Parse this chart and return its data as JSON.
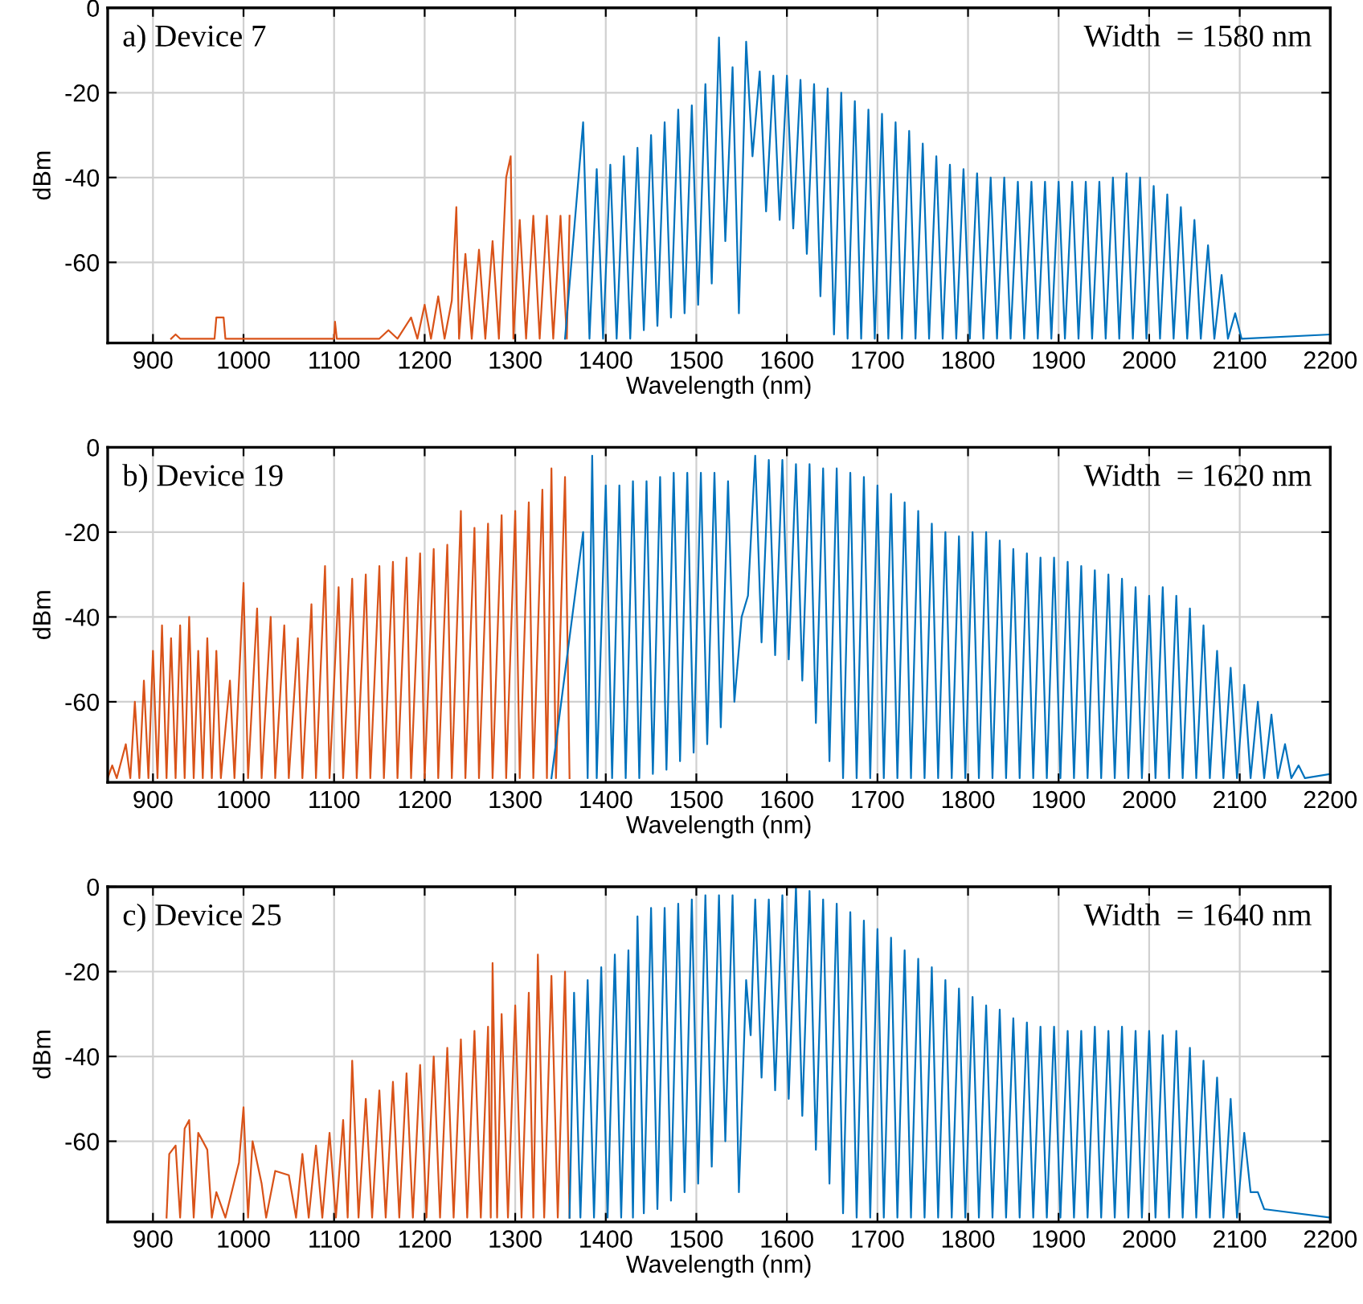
{
  "chart_data": [
    {
      "type": "line",
      "title": "a) Device 7",
      "xlabel": "Wavelength (nm)",
      "ylabel": "dBm",
      "annotations": [
        "Width  = 1580 nm"
      ],
      "xlim": [
        850,
        2200
      ],
      "xticks": [
        900,
        1000,
        1100,
        1200,
        1300,
        1400,
        1500,
        1600,
        1700,
        1800,
        1900,
        2000,
        2100,
        2200
      ],
      "ylim": [
        -79,
        0
      ],
      "yticks": [
        -60,
        -40,
        -20,
        0
      ],
      "grid": true,
      "legend": false,
      "series": [
        {
          "color": "#d95319",
          "x": [
            920,
            925,
            930,
            968,
            970,
            978,
            980,
            1100,
            1101,
            1103,
            1150,
            1160,
            1170,
            1185,
            1192,
            1200,
            1207,
            1215,
            1222,
            1230,
            1235,
            1238,
            1245,
            1252,
            1260,
            1267,
            1275,
            1282,
            1290,
            1295,
            1298,
            1305,
            1312,
            1320,
            1327,
            1335,
            1342,
            1350,
            1357,
            1360
          ],
          "values": [
            -78,
            -77,
            -78,
            -78,
            -73,
            -73,
            -78,
            -78,
            -74,
            -78,
            -78,
            -76,
            -78,
            -73,
            -78,
            -70,
            -78,
            -68,
            -78,
            -69,
            -47,
            -78,
            -58,
            -78,
            -57,
            -78,
            -55,
            -78,
            -40,
            -35,
            -78,
            -50,
            -78,
            -49,
            -78,
            -49,
            -78,
            -49,
            -78,
            -49
          ]
        },
        {
          "color": "#0072bd",
          "x": [
            1355,
            1375,
            1382,
            1390,
            1397,
            1405,
            1412,
            1420,
            1427,
            1435,
            1442,
            1450,
            1457,
            1465,
            1472,
            1480,
            1487,
            1495,
            1502,
            1510,
            1517,
            1525,
            1532,
            1540,
            1547,
            1555,
            1562,
            1570,
            1577,
            1585,
            1592,
            1600,
            1607,
            1615,
            1622,
            1630,
            1637,
            1645,
            1652,
            1660,
            1667,
            1675,
            1682,
            1690,
            1697,
            1705,
            1712,
            1720,
            1727,
            1735,
            1742,
            1750,
            1757,
            1765,
            1772,
            1780,
            1787,
            1795,
            1802,
            1810,
            1817,
            1825,
            1832,
            1840,
            1847,
            1855,
            1862,
            1870,
            1877,
            1885,
            1892,
            1900,
            1907,
            1915,
            1922,
            1930,
            1937,
            1945,
            1952,
            1960,
            1967,
            1975,
            1982,
            1990,
            1997,
            2005,
            2012,
            2020,
            2027,
            2035,
            2042,
            2050,
            2057,
            2065,
            2072,
            2080,
            2087,
            2095,
            2102,
            2200
          ],
          "values": [
            -78,
            -27,
            -78,
            -38,
            -78,
            -37,
            -78,
            -35,
            -78,
            -33,
            -76,
            -30,
            -75,
            -27,
            -73,
            -24,
            -72,
            -23,
            -70,
            -18,
            -65,
            -7,
            -55,
            -14,
            -72,
            -8,
            -35,
            -15,
            -48,
            -16,
            -50,
            -16,
            -52,
            -17,
            -58,
            -18,
            -68,
            -19,
            -77,
            -20,
            -78,
            -22,
            -78,
            -24,
            -78,
            -25,
            -78,
            -27,
            -78,
            -29,
            -78,
            -32,
            -78,
            -35,
            -78,
            -37,
            -78,
            -38,
            -78,
            -39,
            -78,
            -40,
            -78,
            -40,
            -78,
            -41,
            -78,
            -41,
            -78,
            -41,
            -78,
            -41,
            -78,
            -41,
            -78,
            -41,
            -78,
            -41,
            -78,
            -40,
            -78,
            -39,
            -78,
            -40,
            -78,
            -42,
            -78,
            -44,
            -78,
            -47,
            -78,
            -50,
            -78,
            -56,
            -78,
            -63,
            -78,
            -72,
            -78,
            -77
          ]
        }
      ]
    },
    {
      "type": "line",
      "title": "b) Device 19",
      "xlabel": "Wavelength (nm)",
      "ylabel": "dBm",
      "annotations": [
        "Width  = 1620 nm"
      ],
      "xlim": [
        850,
        2200
      ],
      "xticks": [
        900,
        1000,
        1100,
        1200,
        1300,
        1400,
        1500,
        1600,
        1700,
        1800,
        1900,
        2000,
        2100,
        2200
      ],
      "ylim": [
        -79,
        0
      ],
      "yticks": [
        -60,
        -40,
        -20,
        0
      ],
      "grid": true,
      "legend": false,
      "series": [
        {
          "color": "#d95319",
          "x": [
            850,
            855,
            860,
            870,
            875,
            880,
            885,
            890,
            895,
            900,
            905,
            910,
            915,
            920,
            925,
            930,
            935,
            940,
            945,
            950,
            955,
            960,
            965,
            970,
            975,
            985,
            990,
            1000,
            1005,
            1015,
            1020,
            1030,
            1035,
            1045,
            1050,
            1060,
            1065,
            1075,
            1080,
            1090,
            1095,
            1105,
            1110,
            1120,
            1125,
            1135,
            1140,
            1150,
            1155,
            1165,
            1170,
            1180,
            1185,
            1195,
            1200,
            1210,
            1215,
            1225,
            1230,
            1240,
            1245,
            1255,
            1260,
            1270,
            1275,
            1285,
            1290,
            1300,
            1305,
            1315,
            1320,
            1330,
            1335,
            1340,
            1345,
            1355,
            1360
          ],
          "values": [
            -78,
            -75,
            -78,
            -70,
            -78,
            -60,
            -78,
            -55,
            -78,
            -48,
            -78,
            -42,
            -78,
            -45,
            -78,
            -42,
            -78,
            -40,
            -78,
            -48,
            -78,
            -45,
            -78,
            -48,
            -78,
            -55,
            -78,
            -32,
            -78,
            -38,
            -78,
            -40,
            -78,
            -42,
            -78,
            -45,
            -78,
            -37,
            -78,
            -28,
            -78,
            -33,
            -78,
            -31,
            -78,
            -30,
            -78,
            -28,
            -78,
            -27,
            -78,
            -26,
            -78,
            -25,
            -78,
            -24,
            -78,
            -23,
            -78,
            -15,
            -78,
            -19,
            -78,
            -18,
            -78,
            -16,
            -78,
            -15,
            -78,
            -13,
            -78,
            -10,
            -78,
            -5,
            -78,
            -7,
            -78
          ]
        },
        {
          "color": "#0072bd",
          "x": [
            1340,
            1375,
            1380,
            1385,
            1390,
            1400,
            1407,
            1415,
            1422,
            1430,
            1437,
            1445,
            1452,
            1460,
            1467,
            1475,
            1482,
            1490,
            1497,
            1505,
            1512,
            1520,
            1527,
            1535,
            1542,
            1550,
            1557,
            1565,
            1572,
            1580,
            1587,
            1595,
            1602,
            1610,
            1617,
            1625,
            1632,
            1640,
            1647,
            1655,
            1662,
            1670,
            1677,
            1685,
            1692,
            1700,
            1707,
            1715,
            1722,
            1730,
            1737,
            1745,
            1752,
            1760,
            1767,
            1775,
            1782,
            1790,
            1797,
            1805,
            1812,
            1820,
            1827,
            1835,
            1842,
            1850,
            1857,
            1865,
            1872,
            1880,
            1887,
            1895,
            1902,
            1910,
            1917,
            1925,
            1932,
            1940,
            1947,
            1955,
            1962,
            1970,
            1977,
            1985,
            1992,
            2000,
            2007,
            2015,
            2022,
            2030,
            2037,
            2045,
            2052,
            2060,
            2067,
            2075,
            2082,
            2090,
            2097,
            2105,
            2112,
            2120,
            2127,
            2135,
            2142,
            2150,
            2157,
            2165,
            2172,
            2200
          ],
          "values": [
            -78,
            -20,
            -78,
            -2,
            -78,
            -9,
            -78,
            -9,
            -78,
            -8,
            -78,
            -8,
            -77,
            -7,
            -76,
            -6,
            -74,
            -6,
            -72,
            -6,
            -70,
            -6,
            -66,
            -8,
            -60,
            -40,
            -35,
            -2,
            -46,
            -3,
            -49,
            -3,
            -50,
            -4,
            -55,
            -4,
            -65,
            -5,
            -74,
            -5,
            -78,
            -6,
            -78,
            -7,
            -78,
            -9,
            -78,
            -11,
            -78,
            -13,
            -78,
            -15,
            -78,
            -18,
            -78,
            -20,
            -78,
            -21,
            -78,
            -20,
            -78,
            -20,
            -78,
            -22,
            -78,
            -24,
            -78,
            -25,
            -78,
            -26,
            -78,
            -26,
            -78,
            -27,
            -78,
            -28,
            -78,
            -29,
            -78,
            -30,
            -78,
            -31,
            -78,
            -33,
            -78,
            -35,
            -78,
            -33,
            -78,
            -35,
            -78,
            -38,
            -78,
            -42,
            -78,
            -48,
            -78,
            -52,
            -78,
            -56,
            -78,
            -60,
            -78,
            -63,
            -78,
            -70,
            -78,
            -75,
            -78,
            -77
          ]
        }
      ]
    },
    {
      "type": "line",
      "title": "c) Device 25",
      "xlabel": "Wavelength (nm)",
      "ylabel": "dBm",
      "annotations": [
        "Width  = 1640 nm"
      ],
      "xlim": [
        850,
        2200
      ],
      "xticks": [
        900,
        1000,
        1100,
        1200,
        1300,
        1400,
        1500,
        1600,
        1700,
        1800,
        1900,
        2000,
        2100,
        2200
      ],
      "ylim": [
        -79,
        0
      ],
      "yticks": [
        -60,
        -40,
        -20,
        0
      ],
      "grid": true,
      "legend": false,
      "series": [
        {
          "color": "#d95319",
          "x": [
            915,
            918,
            925,
            930,
            935,
            940,
            945,
            950,
            960,
            965,
            970,
            980,
            995,
            1000,
            1005,
            1010,
            1020,
            1025,
            1035,
            1050,
            1058,
            1065,
            1072,
            1080,
            1087,
            1095,
            1102,
            1110,
            1115,
            1120,
            1127,
            1135,
            1142,
            1150,
            1157,
            1165,
            1172,
            1180,
            1187,
            1195,
            1202,
            1210,
            1217,
            1225,
            1232,
            1240,
            1247,
            1255,
            1262,
            1270,
            1273,
            1275,
            1280,
            1285,
            1292,
            1300,
            1307,
            1315,
            1320,
            1325,
            1332,
            1340,
            1347,
            1355,
            1360
          ],
          "values": [
            -78,
            -63,
            -61,
            -78,
            -57,
            -55,
            -78,
            -58,
            -62,
            -78,
            -72,
            -78,
            -65,
            -52,
            -78,
            -60,
            -70,
            -78,
            -67,
            -68,
            -78,
            -63,
            -78,
            -61,
            -78,
            -58,
            -78,
            -55,
            -78,
            -41,
            -78,
            -50,
            -78,
            -48,
            -78,
            -46,
            -78,
            -44,
            -78,
            -42,
            -78,
            -40,
            -78,
            -38,
            -78,
            -36,
            -78,
            -34,
            -78,
            -33,
            -78,
            -18,
            -78,
            -30,
            -78,
            -28,
            -78,
            -25,
            -78,
            -16,
            -78,
            -21,
            -78,
            -20,
            -78
          ]
        },
        {
          "color": "#0072bd",
          "x": [
            1360,
            1365,
            1372,
            1380,
            1387,
            1395,
            1402,
            1410,
            1417,
            1425,
            1430,
            1435,
            1442,
            1450,
            1457,
            1465,
            1472,
            1480,
            1487,
            1495,
            1502,
            1510,
            1517,
            1525,
            1532,
            1540,
            1547,
            1555,
            1560,
            1565,
            1572,
            1580,
            1587,
            1595,
            1602,
            1610,
            1617,
            1625,
            1632,
            1640,
            1647,
            1655,
            1662,
            1670,
            1677,
            1685,
            1692,
            1700,
            1707,
            1715,
            1722,
            1730,
            1737,
            1745,
            1752,
            1760,
            1767,
            1775,
            1782,
            1790,
            1797,
            1805,
            1812,
            1820,
            1827,
            1835,
            1842,
            1850,
            1857,
            1865,
            1872,
            1880,
            1887,
            1895,
            1902,
            1910,
            1917,
            1925,
            1932,
            1940,
            1947,
            1955,
            1962,
            1970,
            1977,
            1985,
            1992,
            2000,
            2007,
            2015,
            2022,
            2030,
            2037,
            2045,
            2052,
            2060,
            2067,
            2075,
            2082,
            2090,
            2097,
            2105,
            2112,
            2120,
            2127,
            2200
          ],
          "values": [
            -78,
            -25,
            -78,
            -22,
            -78,
            -19,
            -78,
            -16,
            -78,
            -15,
            -78,
            -7,
            -77,
            -5,
            -76,
            -5,
            -74,
            -4,
            -72,
            -3,
            -70,
            -2,
            -66,
            -2,
            -60,
            -2,
            -72,
            -22,
            -35,
            -3,
            -45,
            -3,
            -48,
            -2,
            -50,
            0,
            -54,
            -1,
            -62,
            -3,
            -70,
            -4,
            -77,
            -6,
            -78,
            -8,
            -78,
            -10,
            -78,
            -12,
            -78,
            -15,
            -78,
            -17,
            -78,
            -19,
            -78,
            -22,
            -78,
            -24,
            -78,
            -26,
            -78,
            -28,
            -78,
            -29,
            -78,
            -31,
            -78,
            -32,
            -78,
            -33,
            -78,
            -33,
            -78,
            -34,
            -78,
            -34,
            -78,
            -33,
            -78,
            -34,
            -78,
            -33,
            -78,
            -34,
            -78,
            -34,
            -78,
            -35,
            -78,
            -34,
            -78,
            -38,
            -78,
            -41,
            -78,
            -45,
            -78,
            -50,
            -78,
            -58,
            -72,
            -72,
            -76,
            -78
          ]
        }
      ]
    }
  ]
}
